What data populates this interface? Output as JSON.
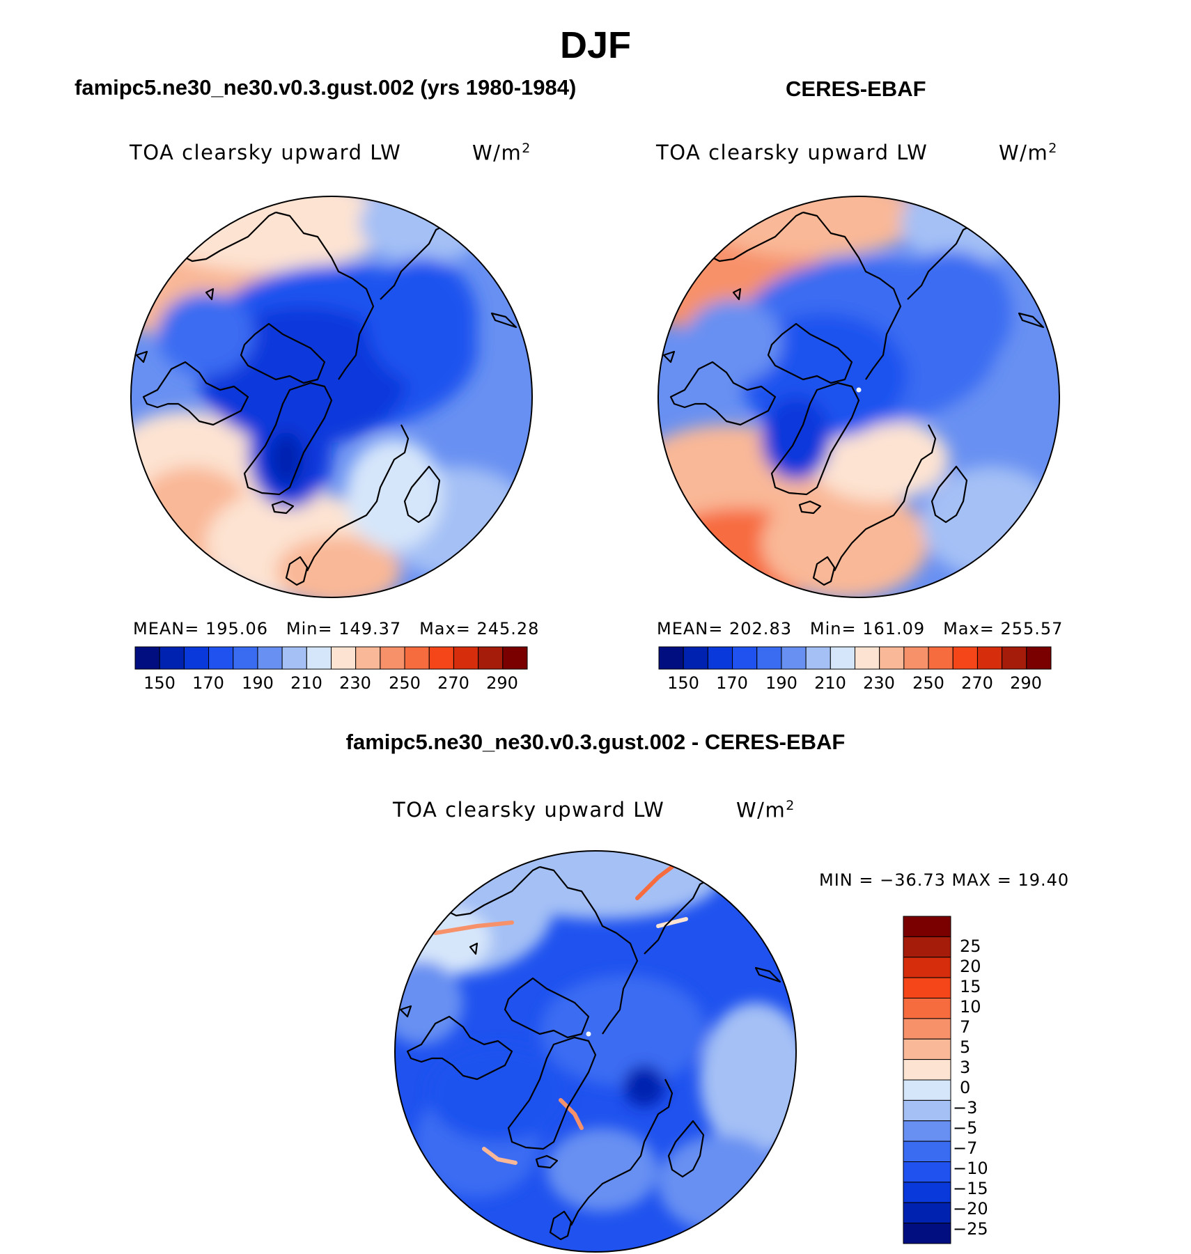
{
  "figure_title": "DJF",
  "panels": [
    {
      "title": "famipc5.ne30_ne30.v0.3.gust.002 (yrs 1980-1984)",
      "variable": "TOA clearsky upward LW",
      "units_base": "W/m",
      "units_exp": "2",
      "mean_label": "MEAN=",
      "mean": "195.06",
      "min_label": "Min=",
      "min": "149.37",
      "max_label": "Max=",
      "max": "245.28"
    },
    {
      "title": "CERES-EBAF",
      "variable": "TOA clearsky upward LW",
      "units_base": "W/m",
      "units_exp": "2",
      "mean_label": "MEAN=",
      "mean": "202.83",
      "min_label": "Min=",
      "min": "161.09",
      "max_label": "Max=",
      "max": "255.57"
    }
  ],
  "colorbar_ticks": [
    "150",
    "170",
    "190",
    "210",
    "230",
    "250",
    "270",
    "290"
  ],
  "diff_panel": {
    "title": "famipc5.ne30_ne30.v0.3.gust.002 - CERES-EBAF",
    "variable": "TOA clearsky upward LW",
    "units_base": "W/m",
    "units_exp": "2",
    "minmax": "MIN = −36.73 MAX =  19.40",
    "colorbar_levels": [
      "25",
      "20",
      "15",
      "10",
      "7",
      "5",
      "3",
      "0",
      "−3",
      "−5",
      "−7",
      "−10",
      "−15",
      "−20",
      "−25"
    ]
  },
  "colors": {
    "palette16": [
      "#000e80",
      "#0022b0",
      "#0a39db",
      "#1f52ef",
      "#3a6cf2",
      "#6890f2",
      "#a4c0f5",
      "#d6e6fa",
      "#fde3d2",
      "#f9b897",
      "#f7916a",
      "#f76c3f",
      "#f5461a",
      "#d62e0d",
      "#a51c0a",
      "#7a0000"
    ],
    "diff_palette": [
      "#7a0000",
      "#a51c0a",
      "#d62e0d",
      "#f5461a",
      "#f76c3f",
      "#f7916a",
      "#f9b897",
      "#fde3d2",
      "#d6e6fa",
      "#a4c0f5",
      "#6890f2",
      "#3a6cf2",
      "#1f52ef",
      "#0a39db",
      "#0022b0",
      "#000e80"
    ],
    "coast": "#000000"
  }
}
